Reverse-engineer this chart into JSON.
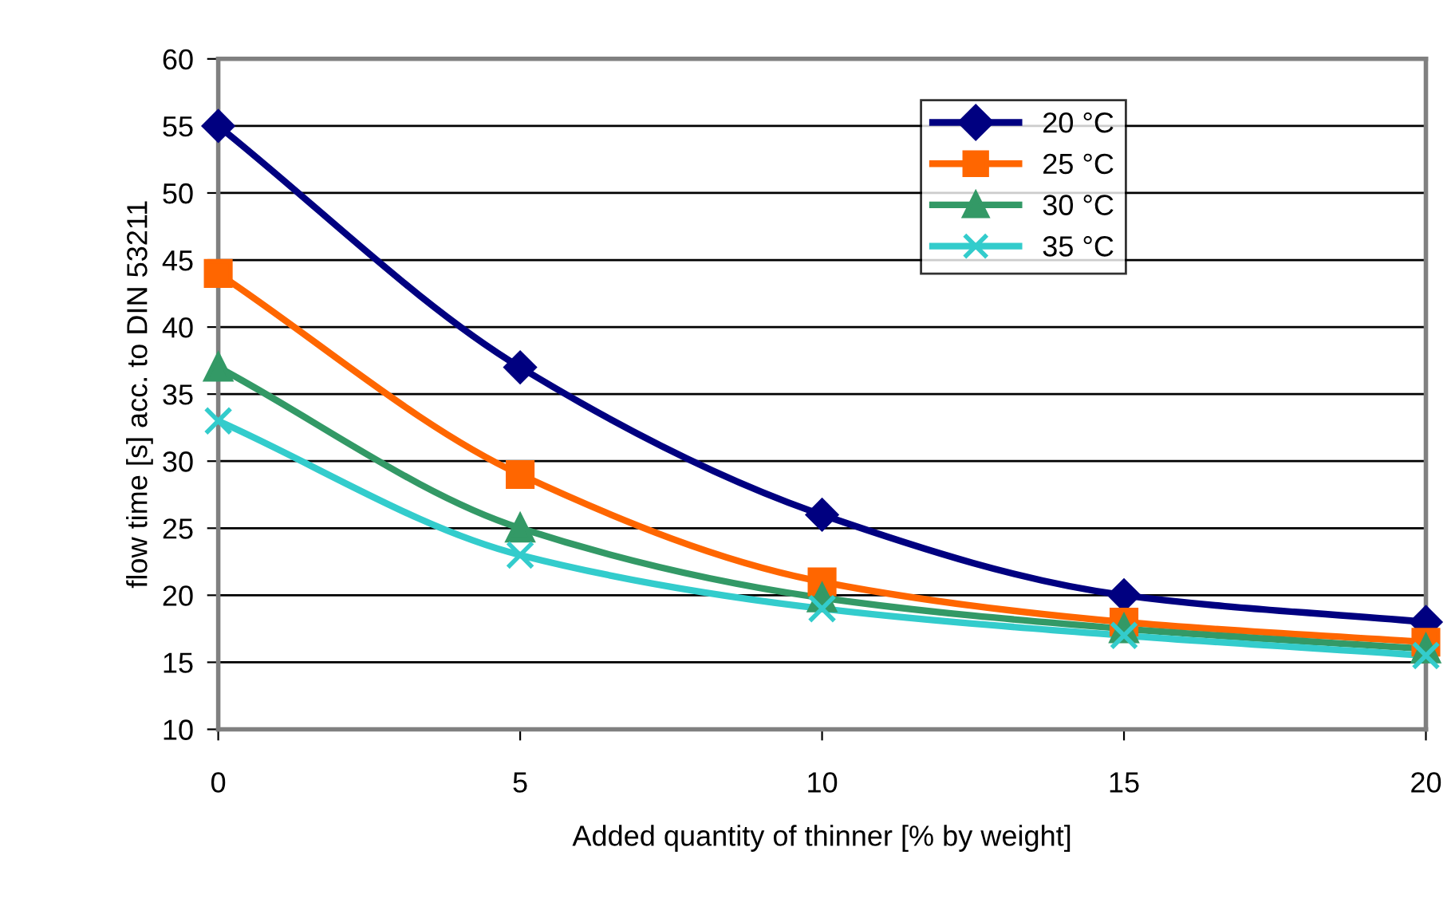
{
  "chart_data": {
    "type": "line",
    "xlabel": "Added quantity of thinner [% by weight]",
    "ylabel": "flow time [s] acc. to DIN 53211",
    "x": [
      0,
      5,
      10,
      15,
      20
    ],
    "series": [
      {
        "name": "20 °C",
        "color": "#000080",
        "marker": "diamond",
        "values": [
          55,
          37,
          26,
          20,
          18
        ]
      },
      {
        "name": "25 °C",
        "color": "#ff6600",
        "marker": "square",
        "values": [
          44,
          29,
          21,
          18,
          16.5
        ]
      },
      {
        "name": "30 °C",
        "color": "#339966",
        "marker": "triangle",
        "values": [
          37,
          25,
          19.8,
          17.5,
          16
        ]
      },
      {
        "name": "35 °C",
        "color": "#33cccc",
        "marker": "cross",
        "values": [
          33,
          23,
          19,
          17,
          15.5
        ]
      }
    ],
    "xlim": [
      0,
      20
    ],
    "xticks": [
      0,
      5,
      10,
      15,
      20
    ],
    "ylim": [
      10,
      60
    ],
    "yticks": [
      10,
      15,
      20,
      25,
      30,
      35,
      40,
      45,
      50,
      55,
      60
    ],
    "grid": "y",
    "legend": "top right",
    "line_style": "solid"
  }
}
